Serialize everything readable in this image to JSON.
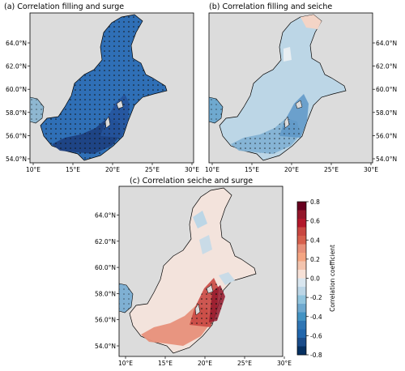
{
  "panels": [
    {
      "title": "(a) Correlation filling and surge"
    },
    {
      "title": "(b) Correlation filling and seiche"
    },
    {
      "title": "(c) Correlation seiche and surge"
    }
  ],
  "axes": {
    "lat_labels": [
      "54.0°N",
      "56.0°N",
      "58.0°N",
      "60.0°N",
      "62.0°N",
      "64.0°N"
    ],
    "lon_labels": [
      "10°E",
      "15°E",
      "20°E",
      "25°E",
      "30°E"
    ]
  },
  "colorbar": {
    "label": "Correlation coefficient",
    "ticks": [
      "0.8",
      "0.6",
      "0.4",
      "0.2",
      "0.0",
      "-0.2",
      "-0.4",
      "-0.6",
      "-0.8"
    ],
    "colors": [
      "#67001f",
      "#94172b",
      "#b2182b",
      "#c94741",
      "#d6604d",
      "#e7907a",
      "#f4a582",
      "#f3c4ae",
      "#f7e1d7",
      "#d9e6ef",
      "#bcd6e6",
      "#92c5de",
      "#6fa9cf",
      "#4393c3",
      "#2f76b4",
      "#2166ac",
      "#1a4c8a",
      "#053061"
    ]
  }
}
